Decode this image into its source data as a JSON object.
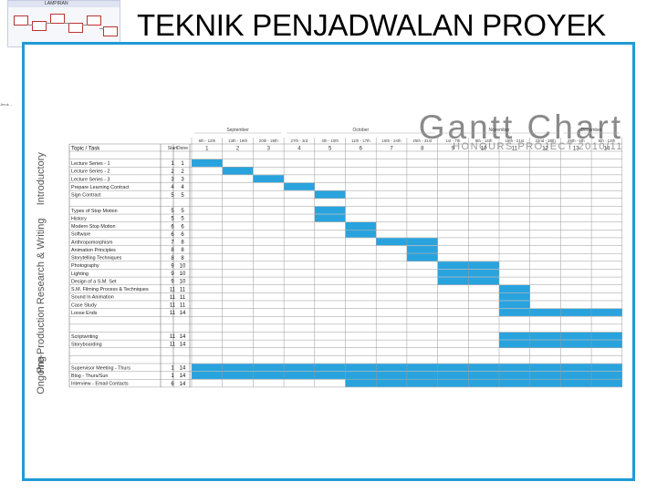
{
  "slide_title": "TEKNIK PENJADWALAN PROYEK",
  "thumbnail": {
    "title": "LAMPIRAN",
    "side_caption": "Jeruk ..."
  },
  "gantt": {
    "heading": "Gantt Chart",
    "subheading": "HONOURS PROJECT 2010/11",
    "bar_color": "#29a3de",
    "months": [
      {
        "label": "September",
        "span": [
          1,
          3
        ]
      },
      {
        "label": "October",
        "span": [
          4,
          8
        ]
      },
      {
        "label": "November",
        "span": [
          9,
          12
        ]
      },
      {
        "label": "December",
        "span": [
          13,
          14
        ]
      }
    ],
    "week_dates": [
      "6th - 12th",
      "13th - 19th",
      "20th - 26th",
      "27th - 3rd",
      "4th - 10th",
      "11th - 17th",
      "18th - 24th",
      "25th - 31st",
      "1st - 7th",
      "8th - 14th",
      "15th - 21st",
      "22nd - 28th",
      "29th - 5th",
      "6th - 12th"
    ],
    "week_numbers": [
      "1",
      "2",
      "3",
      "4",
      "5",
      "6",
      "7",
      "8",
      "9",
      "10",
      "11",
      "12",
      "13",
      "14"
    ],
    "col_headers": {
      "task": "Topic / Task",
      "start": "Start",
      "done": "Done"
    },
    "sections": [
      {
        "label": "Introductory",
        "rows": [
          {
            "task": "Lecture Series - 1",
            "start": "1",
            "done": "1"
          },
          {
            "task": "Lecture Series - 2",
            "start": "2",
            "done": "2"
          },
          {
            "task": "Lecture Series - 3",
            "start": "3",
            "done": "3"
          },
          {
            "task": "Prepare Learning Contract",
            "start": "4",
            "done": "4"
          },
          {
            "task": "Sign Contract",
            "start": "5",
            "done": "5"
          }
        ]
      },
      {
        "label": "Research & Writing",
        "rows": [
          {
            "task": "Types of Stop Motion",
            "start": "5",
            "done": "5"
          },
          {
            "task": "History",
            "start": "5",
            "done": "5"
          },
          {
            "task": "Modern Stop Motion",
            "start": "6",
            "done": "6"
          },
          {
            "task": "Software",
            "start": "6",
            "done": "6"
          },
          {
            "task": "Anthropomorphism",
            "start": "7",
            "done": "8"
          },
          {
            "task": "Animation Principles",
            "start": "8",
            "done": "8"
          },
          {
            "task": "Storytelling Techniques",
            "start": "8",
            "done": "8"
          },
          {
            "task": "Photography",
            "start": "9",
            "done": "10"
          },
          {
            "task": "Lighting",
            "start": "9",
            "done": "10"
          },
          {
            "task": "Design of a S.M. Set",
            "start": "9",
            "done": "10"
          },
          {
            "task": "S.M. Filming Process & Techniques",
            "start": "11",
            "done": "11"
          },
          {
            "task": "Sound In Animation",
            "start": "11",
            "done": "11"
          },
          {
            "task": "Case Study",
            "start": "11",
            "done": "11"
          },
          {
            "task": "Loose Ends",
            "start": "11",
            "done": "14"
          }
        ]
      },
      {
        "label": "Pre-Production",
        "rows": [
          {
            "task": "",
            "start": "",
            "done": ""
          },
          {
            "task": "Scriptwriting",
            "start": "11",
            "done": "14"
          },
          {
            "task": "Storyboarding",
            "start": "11",
            "done": "14"
          },
          {
            "task": "",
            "start": "",
            "done": ""
          }
        ]
      },
      {
        "label": "Ongoing",
        "rows": [
          {
            "task": "Supervisor Meeting - Thurs",
            "start": "1",
            "done": "14"
          },
          {
            "task": "Blog - Thurs/Sun",
            "start": "1",
            "done": "14"
          },
          {
            "task": "Interview - Email Contacts",
            "start": "6",
            "done": "14"
          }
        ]
      }
    ]
  }
}
